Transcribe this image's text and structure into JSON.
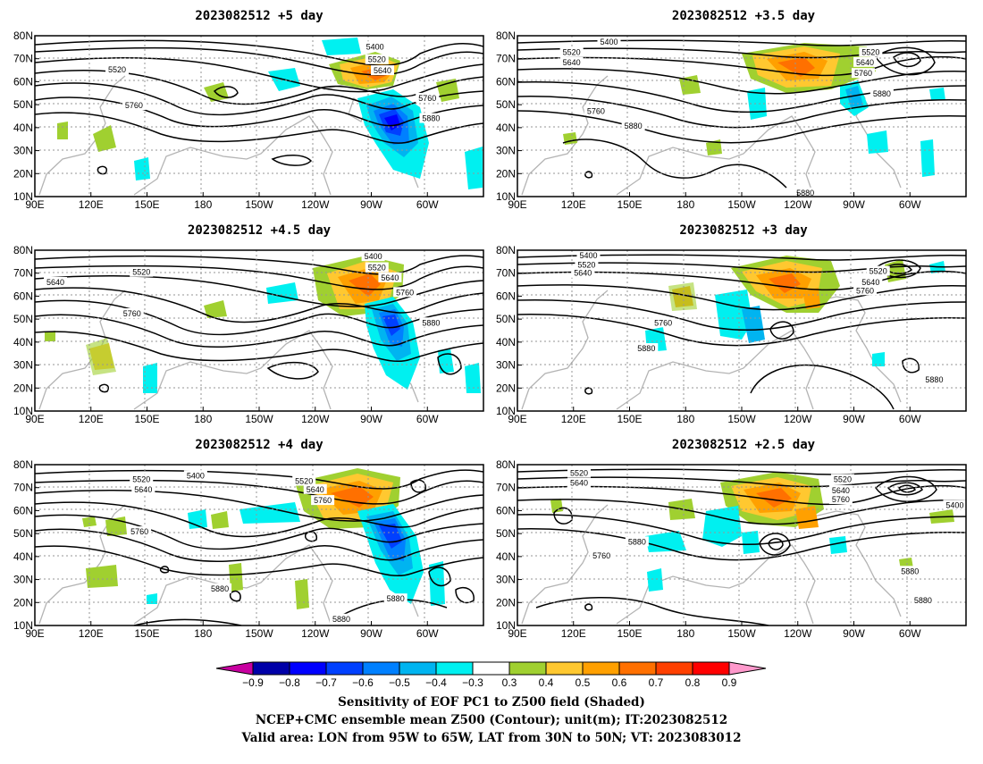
{
  "panels": [
    {
      "title": "2023082512 +5 day",
      "labels": [
        {
          "text": "5400",
          "lon": 272,
          "lat": 75.2
        },
        {
          "text": "5520",
          "lon": 273,
          "lat": 69.6
        },
        {
          "text": "5640",
          "lon": 276,
          "lat": 64.8
        },
        {
          "text": "5520",
          "lon": 134,
          "lat": 65.2
        },
        {
          "text": "5760",
          "lon": 143,
          "lat": 49.6
        },
        {
          "text": "5760",
          "lon": 300,
          "lat": 52.8
        },
        {
          "text": "5880",
          "lon": 302,
          "lat": 44
        }
      ]
    },
    {
      "title": "2023082512 +3.5 day",
      "labels": [
        {
          "text": "5400",
          "lon": 139,
          "lat": 77.2
        },
        {
          "text": "5520",
          "lon": 119,
          "lat": 72.8
        },
        {
          "text": "5640",
          "lon": 119,
          "lat": 68.4
        },
        {
          "text": "5520",
          "lon": 279,
          "lat": 72.8
        },
        {
          "text": "5640",
          "lon": 276,
          "lat": 68.4
        },
        {
          "text": "5760",
          "lon": 275,
          "lat": 63.6
        },
        {
          "text": "5880",
          "lon": 285,
          "lat": 54.8
        },
        {
          "text": "5760",
          "lon": 132,
          "lat": 47.2
        },
        {
          "text": "5880",
          "lon": 152,
          "lat": 40.8
        },
        {
          "text": "5880",
          "lon": 244,
          "lat": 11.6
        }
      ]
    },
    {
      "title": "2023082512 +4.5 day",
      "labels": [
        {
          "text": "5400",
          "lon": 271,
          "lat": 77.2
        },
        {
          "text": "5520",
          "lon": 273,
          "lat": 72.4
        },
        {
          "text": "5520",
          "lon": 147,
          "lat": 70.4
        },
        {
          "text": "5640",
          "lon": 280,
          "lat": 68
        },
        {
          "text": "5640",
          "lon": 101,
          "lat": 66
        },
        {
          "text": "5760",
          "lon": 288,
          "lat": 61.6
        },
        {
          "text": "5760",
          "lon": 142,
          "lat": 52.4
        },
        {
          "text": "5880",
          "lon": 302,
          "lat": 48.4
        }
      ]
    },
    {
      "title": "2023082512 +3 day",
      "labels": [
        {
          "text": "5400",
          "lon": 128,
          "lat": 77.6
        },
        {
          "text": "5520",
          "lon": 127,
          "lat": 73.6
        },
        {
          "text": "5640",
          "lon": 125,
          "lat": 70
        },
        {
          "text": "5520",
          "lon": 283,
          "lat": 70.8
        },
        {
          "text": "5640",
          "lon": 279,
          "lat": 66
        },
        {
          "text": "5760",
          "lon": 276,
          "lat": 62.4
        },
        {
          "text": "5760",
          "lon": 168,
          "lat": 48.4
        },
        {
          "text": "5880",
          "lon": 159,
          "lat": 37.2
        },
        {
          "text": "5880",
          "lon": 313,
          "lat": 23.6
        }
      ]
    },
    {
      "title": "2023082512 +4 day",
      "labels": [
        {
          "text": "5520",
          "lon": 147,
          "lat": 73.6
        },
        {
          "text": "5640",
          "lon": 148,
          "lat": 69.2
        },
        {
          "text": "5400",
          "lon": 176,
          "lat": 75.2
        },
        {
          "text": "5520",
          "lon": 234,
          "lat": 72.8
        },
        {
          "text": "5640",
          "lon": 240,
          "lat": 69.2
        },
        {
          "text": "5760",
          "lon": 244,
          "lat": 64.4
        },
        {
          "text": "5760",
          "lon": 146,
          "lat": 50.8
        },
        {
          "text": "5880",
          "lon": 189,
          "lat": 26
        },
        {
          "text": "5880",
          "lon": 283,
          "lat": 21.6
        },
        {
          "text": "5880",
          "lon": 254,
          "lat": 12.8
        }
      ]
    },
    {
      "title": "2023082512 +2.5 day",
      "labels": [
        {
          "text": "5520",
          "lon": 123,
          "lat": 76.4
        },
        {
          "text": "5640",
          "lon": 123,
          "lat": 72
        },
        {
          "text": "5520",
          "lon": 264,
          "lat": 73.6
        },
        {
          "text": "5640",
          "lon": 263,
          "lat": 68.8
        },
        {
          "text": "5760",
          "lon": 263,
          "lat": 64.8
        },
        {
          "text": "5400",
          "lon": 324,
          "lat": 62.4
        },
        {
          "text": "5880",
          "lon": 154,
          "lat": 46.4
        },
        {
          "text": "5760",
          "lon": 135,
          "lat": 40.4
        },
        {
          "text": "5880",
          "lon": 300,
          "lat": 33.6
        },
        {
          "text": "5880",
          "lon": 307,
          "lat": 20.8
        }
      ]
    }
  ],
  "lon_ticks": [
    "90E",
    "120E",
    "150E",
    "180",
    "150W",
    "120W",
    "90W",
    "60W"
  ],
  "lat_ticks": [
    "10N",
    "20N",
    "30N",
    "40N",
    "50N",
    "60N",
    "70N",
    "80N"
  ],
  "colorbar": {
    "labels": [
      "-0.9",
      "-0.8",
      "-0.7",
      "-0.6",
      "-0.5",
      "-0.4",
      "-0.3",
      "0.3",
      "0.4",
      "0.5",
      "0.6",
      "0.7",
      "0.8",
      "0.9"
    ],
    "colors": [
      "#0000a8",
      "#0000ff",
      "#0040ff",
      "#0080ff",
      "#00b4f0",
      "#00f0f0",
      "#ffffff",
      "#a0d030",
      "#ffc830",
      "#ffa000",
      "#ff7000",
      "#ff4000",
      "#ff0000"
    ],
    "low_end_color": "#c800a0",
    "high_end_color": "#ff99cc"
  },
  "captions": [
    "Sensitivity of EOF PC1 to Z500 field (Shaded)",
    "NCEP+CMC ensemble mean Z500 (Contour); unit(m); IT:2023082512",
    "Valid area: LON from 95W to 65W, LAT from 30N to 50N; VT: 2023083012"
  ]
}
